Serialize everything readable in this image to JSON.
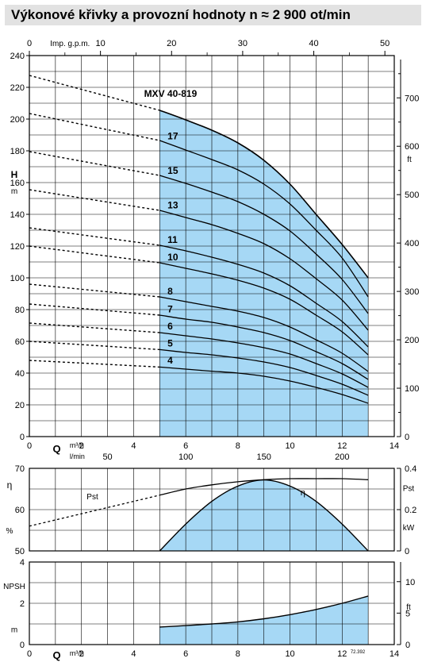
{
  "header": {
    "title": "Výkonové křivky a provozní hodnoty n ≈ 2 900 ot/min"
  },
  "colors": {
    "fill": "#a6d8f5",
    "line": "#000000",
    "header_bg": "#e2e2e2"
  },
  "chart_data": [
    {
      "type": "line",
      "name": "head",
      "title": "MXV 40-819",
      "xlabel": "Q",
      "xunit": "m³/h",
      "ylabel": "H",
      "yunit": "m",
      "y2label": "ft",
      "top_axis_label": "Imp. g.p.m.",
      "top_axis_ticks": [
        "0",
        "10",
        "20",
        "30",
        "40",
        "50"
      ],
      "lmin_label": "l/min",
      "lmin_ticks": [
        "50",
        "100",
        "150",
        "200"
      ],
      "x_ticks": [
        "0",
        "2",
        "4",
        "6",
        "8",
        "10",
        "12",
        "14"
      ],
      "y_ticks": [
        "0",
        "20",
        "40",
        "60",
        "80",
        "100",
        "120",
        "140",
        "160",
        "180",
        "200",
        "220",
        "240"
      ],
      "y2_ticks": [
        "0",
        "100",
        "200",
        "300",
        "400",
        "500",
        "600",
        "700"
      ],
      "xlim": [
        0,
        14
      ],
      "ylim": [
        0,
        240
      ],
      "operating_range": [
        5,
        13
      ],
      "x": [
        0,
        5,
        6,
        7,
        8,
        9,
        10,
        11,
        12,
        13
      ],
      "series": [
        {
          "name": "4",
          "values": [
            48,
            43.8,
            42.5,
            41.2,
            40,
            38,
            35,
            31,
            26.5,
            21
          ]
        },
        {
          "name": "5",
          "values": [
            60,
            54.8,
            53,
            51.5,
            49.5,
            47,
            43.5,
            38.5,
            33,
            26
          ]
        },
        {
          "name": "6",
          "values": [
            71.5,
            65.5,
            63.5,
            61.5,
            59,
            56,
            52,
            46,
            39.5,
            31
          ]
        },
        {
          "name": "7",
          "values": [
            83.5,
            76.5,
            74,
            72,
            69,
            65.5,
            60.5,
            53.5,
            46,
            36
          ]
        },
        {
          "name": "8",
          "values": [
            96,
            88,
            85,
            82,
            79,
            75,
            69,
            61,
            52.5,
            41
          ]
        },
        {
          "name": "10",
          "values": [
            120,
            109.5,
            106,
            102.5,
            98.5,
            93.5,
            86.5,
            76.5,
            66,
            51.5
          ]
        },
        {
          "name": "11",
          "values": [
            131.5,
            120.5,
            117,
            113,
            108.5,
            103,
            95,
            84,
            72.5,
            56.5
          ]
        },
        {
          "name": "13",
          "values": [
            155.5,
            142.5,
            138,
            133.5,
            128,
            121.5,
            112,
            99.5,
            86,
            67
          ]
        },
        {
          "name": "15",
          "values": [
            179.5,
            164.5,
            159.5,
            154,
            148,
            140,
            129.5,
            115,
            99,
            77.5
          ]
        },
        {
          "name": "17",
          "values": [
            203.5,
            186.5,
            180.5,
            174.5,
            168,
            159,
            146.5,
            130,
            112.5,
            88
          ]
        },
        {
          "name": "MXV 40-819",
          "values": [
            227.5,
            205.5,
            199.5,
            193,
            185,
            174,
            159,
            140,
            121,
            100
          ]
        }
      ]
    },
    {
      "type": "line",
      "name": "efficiency-power",
      "y_ticks": [
        "50",
        "60",
        "70"
      ],
      "y2_ticks": [
        "0",
        "0.2",
        "0.4"
      ],
      "ylabel": "η",
      "yunit": "%",
      "y2label": "Pst",
      "y2unit": "kW",
      "xlim": [
        0,
        14
      ],
      "ylim": [
        50,
        70
      ],
      "y2lim": [
        0,
        0.4
      ],
      "series": [
        {
          "name": "Pst",
          "x": [
            0,
            2,
            4,
            5,
            6,
            7,
            8,
            9,
            10,
            11,
            12,
            13
          ],
          "values": [
            0.12,
            0.18,
            0.24,
            0.27,
            0.3,
            0.32,
            0.335,
            0.345,
            0.35,
            0.35,
            0.35,
            0.345
          ]
        },
        {
          "name": "η",
          "x": [
            5,
            6,
            7,
            8,
            9,
            10,
            11,
            12,
            13
          ],
          "values": [
            50,
            56.5,
            62,
            65.7,
            67.2,
            65.7,
            62,
            56.5,
            50
          ]
        }
      ]
    },
    {
      "type": "area",
      "name": "npsh",
      "xlabel": "Q",
      "xunit": "m³/h",
      "ylabel": "NPSH",
      "yunit": "m",
      "y2label": "ft",
      "x_ticks": [
        "0",
        "2",
        "4",
        "6",
        "8",
        "10",
        "12",
        "14"
      ],
      "y_ticks": [
        "0",
        "2",
        "4"
      ],
      "y2_ticks": [
        "0",
        "5",
        "10"
      ],
      "note": "72.392",
      "xlim": [
        0,
        14
      ],
      "ylim": [
        0,
        4
      ],
      "series": [
        {
          "name": "NPSH",
          "x": [
            5,
            6,
            7,
            8,
            9,
            10,
            11,
            12,
            13
          ],
          "values": [
            0.85,
            0.92,
            1.0,
            1.1,
            1.25,
            1.45,
            1.7,
            2.0,
            2.35
          ]
        }
      ]
    }
  ]
}
